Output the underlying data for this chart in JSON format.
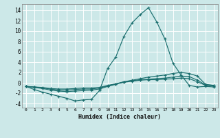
{
  "xlabel": "Humidex (Indice chaleur)",
  "background_color": "#cce8e8",
  "grid_color": "#ffffff",
  "line_color": "#1a6e6e",
  "x_ticks": [
    0,
    1,
    2,
    3,
    4,
    5,
    6,
    7,
    8,
    9,
    10,
    11,
    12,
    13,
    14,
    15,
    16,
    17,
    18,
    19,
    20,
    21,
    22,
    23
  ],
  "y_ticks": [
    -4,
    -2,
    0,
    2,
    4,
    6,
    8,
    10,
    12,
    14
  ],
  "ylim": [
    -4.8,
    15.2
  ],
  "xlim": [
    -0.5,
    23.5
  ],
  "series": [
    {
      "x": [
        0,
        1,
        2,
        3,
        4,
        5,
        6,
        7,
        8,
        9,
        10,
        11,
        12,
        13,
        14,
        15,
        16,
        17,
        18,
        19,
        20,
        21,
        22,
        23
      ],
      "y": [
        -0.7,
        -1.3,
        -1.8,
        -2.2,
        -2.6,
        -3.0,
        -3.5,
        -3.3,
        -3.2,
        -1.5,
        2.8,
        5.0,
        9.0,
        11.6,
        13.2,
        14.5,
        11.8,
        8.5,
        3.8,
        1.5,
        -0.5,
        -0.8,
        -0.7,
        -0.8
      ]
    },
    {
      "x": [
        0,
        1,
        2,
        3,
        4,
        5,
        6,
        7,
        8,
        9,
        10,
        11,
        12,
        13,
        14,
        15,
        16,
        17,
        18,
        19,
        20,
        21,
        22,
        23
      ],
      "y": [
        -0.7,
        -0.9,
        -1.1,
        -1.4,
        -1.6,
        -1.7,
        -1.6,
        -1.5,
        -1.4,
        -1.2,
        -0.7,
        -0.3,
        0.2,
        0.5,
        0.8,
        1.1,
        1.3,
        1.5,
        1.8,
        2.0,
        1.8,
        1.3,
        -0.3,
        -0.5
      ]
    },
    {
      "x": [
        0,
        1,
        2,
        3,
        4,
        5,
        6,
        7,
        8,
        9,
        10,
        11,
        12,
        13,
        14,
        15,
        16,
        17,
        18,
        19,
        20,
        21,
        22,
        23
      ],
      "y": [
        -0.7,
        -0.8,
        -1.0,
        -1.2,
        -1.4,
        -1.4,
        -1.3,
        -1.2,
        -1.2,
        -1.0,
        -0.6,
        -0.2,
        0.2,
        0.4,
        0.6,
        0.7,
        0.8,
        0.9,
        1.1,
        1.3,
        1.2,
        0.5,
        -0.4,
        -0.5
      ]
    },
    {
      "x": [
        0,
        1,
        2,
        3,
        4,
        5,
        6,
        7,
        8,
        9,
        10,
        11,
        12,
        13,
        14,
        15,
        16,
        17,
        18,
        19,
        20,
        21,
        22,
        23
      ],
      "y": [
        -0.7,
        -0.8,
        -0.9,
        -1.1,
        -1.2,
        -1.2,
        -1.1,
        -1.0,
        -1.0,
        -0.9,
        -0.5,
        -0.2,
        0.1,
        0.3,
        0.5,
        0.6,
        0.6,
        0.7,
        0.8,
        0.9,
        0.8,
        0.2,
        -0.5,
        -0.6
      ]
    }
  ]
}
